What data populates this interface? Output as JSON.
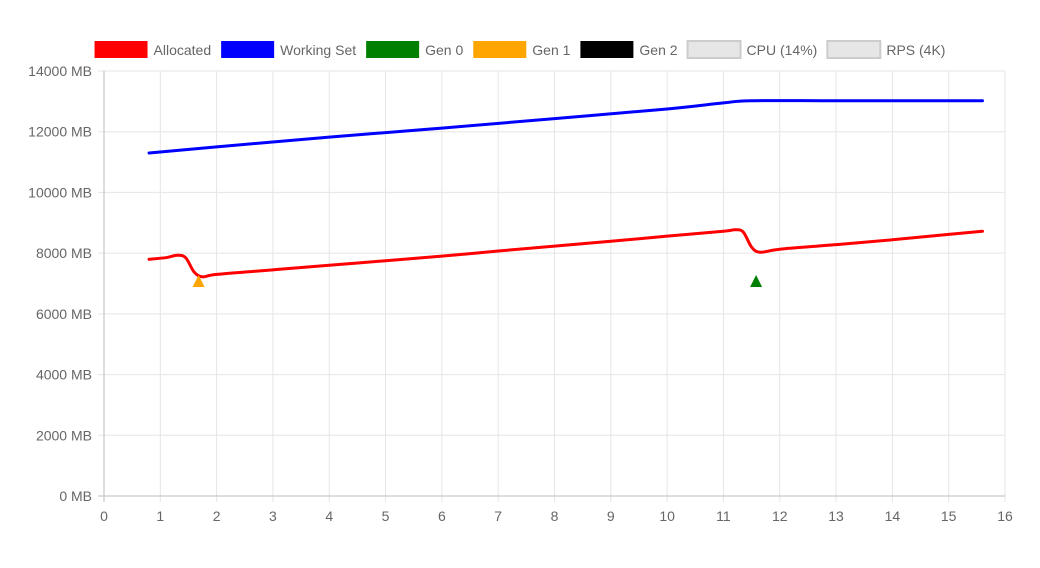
{
  "chart_data": {
    "type": "line",
    "x_axis": {
      "min": 0,
      "max": 16,
      "ticks": [
        0,
        1,
        2,
        3,
        4,
        5,
        6,
        7,
        8,
        9,
        10,
        11,
        12,
        13,
        14,
        15,
        16
      ]
    },
    "y_axis": {
      "min": 0,
      "max": 14000,
      "ticks": [
        {
          "value": 0,
          "label": "0 MB"
        },
        {
          "value": 2000,
          "label": "2000 MB"
        },
        {
          "value": 4000,
          "label": "4000 MB"
        },
        {
          "value": 6000,
          "label": "6000 MB"
        },
        {
          "value": 8000,
          "label": "8000 MB"
        },
        {
          "value": 10000,
          "label": "10000 MB"
        },
        {
          "value": 12000,
          "label": "12000 MB"
        },
        {
          "value": 14000,
          "label": "14000 MB"
        }
      ]
    },
    "grid": true,
    "legend_position": "top",
    "legend": [
      {
        "label": "Allocated",
        "color": "#ff0000",
        "hidden": false
      },
      {
        "label": "Working Set",
        "color": "#0000ff",
        "hidden": false
      },
      {
        "label": "Gen 0",
        "color": "#008000",
        "hidden": false
      },
      {
        "label": "Gen 1",
        "color": "#ffa500",
        "hidden": false
      },
      {
        "label": "Gen 2",
        "color": "#000000",
        "hidden": false
      },
      {
        "label": "CPU (14%)",
        "color": "#e6e6e6",
        "hidden": true
      },
      {
        "label": "RPS (4K)",
        "color": "#e6e6e6",
        "hidden": true
      }
    ],
    "series": [
      {
        "name": "Working Set",
        "color": "#0000ff",
        "points": [
          [
            0.8,
            11300
          ],
          [
            2,
            11500
          ],
          [
            4,
            11820
          ],
          [
            6,
            12120
          ],
          [
            8,
            12430
          ],
          [
            10,
            12750
          ],
          [
            11,
            12950
          ],
          [
            11.5,
            13020
          ],
          [
            13,
            13020
          ],
          [
            15,
            13020
          ],
          [
            15.6,
            13020
          ]
        ]
      },
      {
        "name": "Allocated",
        "color": "#ff0000",
        "points": [
          [
            0.8,
            7800
          ],
          [
            1.1,
            7850
          ],
          [
            1.3,
            7930
          ],
          [
            1.45,
            7850
          ],
          [
            1.6,
            7380
          ],
          [
            1.75,
            7220
          ],
          [
            2.0,
            7300
          ],
          [
            3,
            7450
          ],
          [
            4,
            7600
          ],
          [
            5,
            7750
          ],
          [
            6,
            7900
          ],
          [
            7,
            8070
          ],
          [
            8,
            8230
          ],
          [
            9,
            8390
          ],
          [
            10,
            8560
          ],
          [
            11,
            8720
          ],
          [
            11.2,
            8770
          ],
          [
            11.35,
            8700
          ],
          [
            11.5,
            8200
          ],
          [
            11.65,
            8030
          ],
          [
            12,
            8130
          ],
          [
            13,
            8280
          ],
          [
            14,
            8440
          ],
          [
            15,
            8620
          ],
          [
            15.6,
            8720
          ]
        ]
      }
    ],
    "gc_markers": [
      {
        "name": "Gen 1",
        "color": "#ffa500",
        "x": 1.68,
        "y": 7050
      },
      {
        "name": "Gen 0",
        "color": "#008000",
        "x": 11.58,
        "y": 7050
      }
    ]
  }
}
